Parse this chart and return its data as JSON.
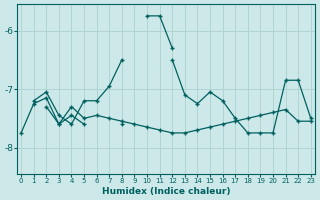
{
  "title": "",
  "xlabel": "Humidex (Indice chaleur)",
  "ylabel": "",
  "bg_color": "#cce8e8",
  "grid_color": "#b0d4d4",
  "line_color": "#006060",
  "x_ticks": [
    0,
    1,
    2,
    3,
    4,
    5,
    6,
    7,
    8,
    9,
    10,
    11,
    12,
    13,
    14,
    15,
    16,
    17,
    18,
    19,
    20,
    21,
    22,
    23
  ],
  "y_ticks": [
    -8,
    -7,
    -6
  ],
  "ylim": [
    -8.45,
    -5.55
  ],
  "xlim": [
    -0.3,
    23.3
  ],
  "series1": [
    null,
    null,
    -7.3,
    -7.6,
    -7.45,
    -7.6,
    null,
    null,
    -7.6,
    null,
    null,
    null,
    -6.5,
    -7.1,
    -7.25,
    -7.05,
    -7.2,
    -7.5,
    -7.75,
    -7.75,
    -7.75,
    -6.85,
    -6.85,
    -7.5
  ],
  "series2": [
    -7.75,
    -7.25,
    -7.15,
    -7.6,
    -7.3,
    -7.5,
    -7.45,
    -7.5,
    -7.55,
    -7.6,
    -7.65,
    -7.7,
    -7.75,
    -7.75,
    -7.7,
    -7.65,
    -7.6,
    -7.55,
    -7.5,
    -7.45,
    -7.4,
    -7.35,
    -7.55,
    -7.55
  ],
  "series3": [
    null,
    -7.2,
    -7.05,
    -7.45,
    -7.6,
    -7.2,
    -7.2,
    -6.95,
    -6.5,
    null,
    -5.75,
    -5.75,
    -6.3,
    null,
    null,
    null,
    null,
    null,
    null,
    null,
    null,
    null,
    null,
    null
  ]
}
